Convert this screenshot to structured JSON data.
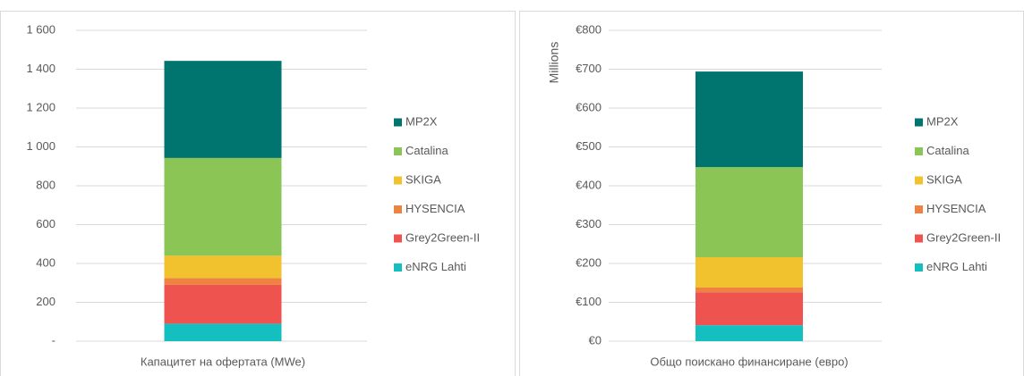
{
  "chart_data": [
    {
      "type": "bar",
      "stacked": true,
      "categories": [
        "Капацитет на офертата (MWe)"
      ],
      "series": [
        {
          "name": "eNRG Lahti",
          "color": "#14bfbf",
          "values": [
            90
          ]
        },
        {
          "name": "Grey2Green-II",
          "color": "#ef5350",
          "values": [
            200
          ]
        },
        {
          "name": "HYSENCIA",
          "color": "#ee8341",
          "values": [
            35
          ]
        },
        {
          "name": "SKIGA",
          "color": "#f2c12e",
          "values": [
            115
          ]
        },
        {
          "name": "Catalina",
          "color": "#8bc555",
          "values": [
            503
          ]
        },
        {
          "name": "MP2X",
          "color": "#007570",
          "values": [
            500
          ]
        }
      ],
      "ylim": [
        0,
        1600
      ],
      "yticks": [
        {
          "value": 0,
          "label": "-"
        },
        200,
        400,
        600,
        800,
        {
          "value": 1000,
          "label": "1 000"
        },
        {
          "value": 1200,
          "label": "1 200"
        },
        {
          "value": 1400,
          "label": "1 400"
        },
        {
          "value": 1600,
          "label": "1 600"
        }
      ],
      "grid": true,
      "legend": "right"
    },
    {
      "type": "bar",
      "stacked": true,
      "ylabel": "Millions",
      "categories": [
        "Общо поискано финансиране (евро)"
      ],
      "series": [
        {
          "name": "eNRG Lahti",
          "color": "#14bfbf",
          "values": [
            41
          ]
        },
        {
          "name": "Grey2Green-II",
          "color": "#ef5350",
          "values": [
            85
          ]
        },
        {
          "name": "HYSENCIA",
          "color": "#ee8341",
          "values": [
            12
          ]
        },
        {
          "name": "SKIGA",
          "color": "#f2c12e",
          "values": [
            78
          ]
        },
        {
          "name": "Catalina",
          "color": "#8bc555",
          "values": [
            232
          ]
        },
        {
          "name": "MP2X",
          "color": "#007570",
          "values": [
            246
          ]
        }
      ],
      "ylim": [
        0,
        800
      ],
      "yticks": [
        {
          "value": 0,
          "label": "€0"
        },
        {
          "value": 100,
          "label": "€100"
        },
        {
          "value": 200,
          "label": "€200"
        },
        {
          "value": 300,
          "label": "€300"
        },
        {
          "value": 400,
          "label": "€400"
        },
        {
          "value": 500,
          "label": "€500"
        },
        {
          "value": 600,
          "label": "€600"
        },
        {
          "value": 700,
          "label": "€700"
        },
        {
          "value": 800,
          "label": "€800"
        }
      ],
      "grid": true,
      "legend": "right"
    }
  ]
}
